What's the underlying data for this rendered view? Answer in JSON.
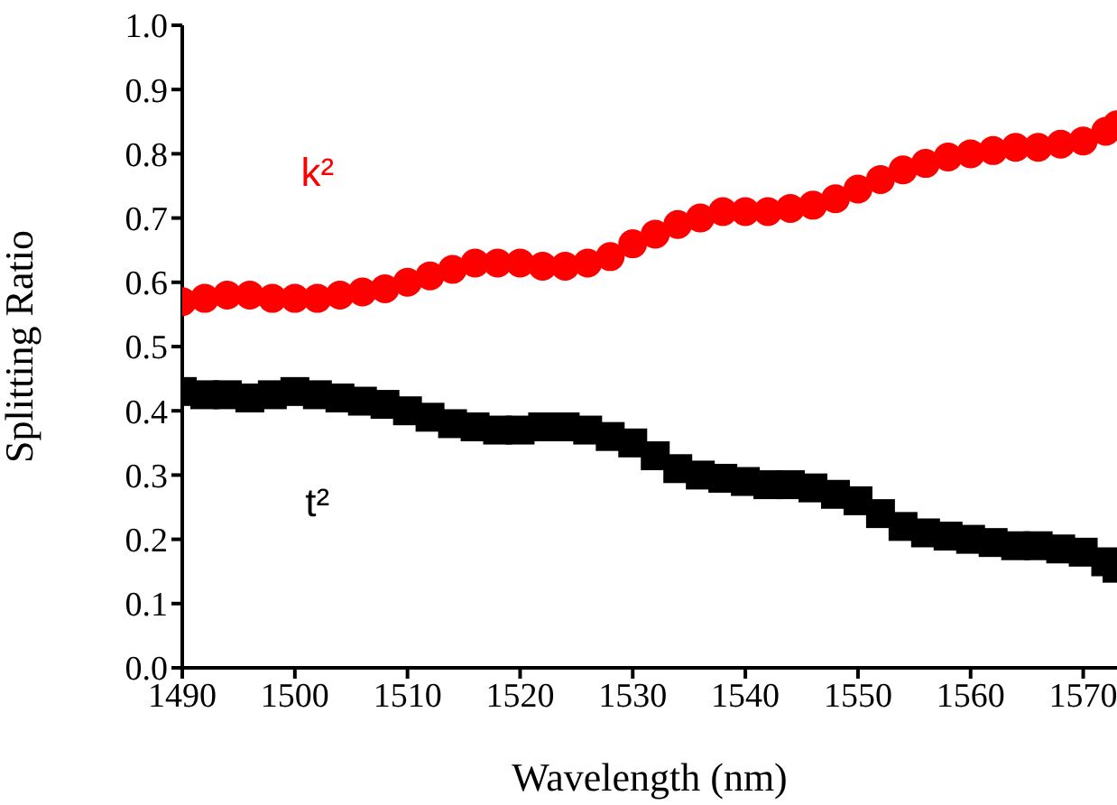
{
  "chart_data": {
    "type": "scatter",
    "xlabel": "Wavelength (nm)",
    "ylabel": "Splitting Ratio",
    "xlim": [
      1490,
      1573
    ],
    "xticks": [
      1490,
      1500,
      1510,
      1520,
      1530,
      1540,
      1550,
      1560,
      1570
    ],
    "ylim": [
      0,
      1
    ],
    "yticks": [
      {
        "value": 0,
        "label": "0.0"
      },
      {
        "value": 0.1,
        "label": "0.1"
      },
      {
        "value": 0.2,
        "label": "0.2"
      },
      {
        "value": 0.3,
        "label": "0.3"
      },
      {
        "value": 0.4,
        "label": "0.4"
      },
      {
        "value": 0.5,
        "label": "0.5"
      },
      {
        "value": 0.6,
        "label": "0.6"
      },
      {
        "value": 0.7,
        "label": "0.7"
      },
      {
        "value": 0.8,
        "label": "0.8"
      },
      {
        "value": 0.9,
        "label": "0.9"
      },
      {
        "value": 1,
        "label": "1.0"
      }
    ],
    "grid": false,
    "legend": false,
    "x": [
      1490,
      1492,
      1494,
      1496,
      1498,
      1500,
      1502,
      1504,
      1506,
      1508,
      1510,
      1512,
      1514,
      1516,
      1518,
      1520,
      1522,
      1524,
      1526,
      1528,
      1530,
      1532,
      1534,
      1536,
      1538,
      1540,
      1542,
      1544,
      1546,
      1548,
      1550,
      1552,
      1554,
      1556,
      1558,
      1560,
      1562,
      1564,
      1566,
      1568,
      1570,
      1572,
      1573
    ],
    "series": [
      {
        "name": "k²",
        "color": "#ff0000",
        "marker": "circle",
        "values": [
          0.57,
          0.575,
          0.58,
          0.58,
          0.575,
          0.575,
          0.575,
          0.58,
          0.585,
          0.59,
          0.6,
          0.61,
          0.62,
          0.63,
          0.63,
          0.63,
          0.625,
          0.625,
          0.63,
          0.64,
          0.66,
          0.675,
          0.69,
          0.7,
          0.71,
          0.71,
          0.71,
          0.715,
          0.72,
          0.73,
          0.745,
          0.76,
          0.775,
          0.785,
          0.795,
          0.8,
          0.805,
          0.81,
          0.81,
          0.815,
          0.82,
          0.835,
          0.845
        ]
      },
      {
        "name": "t²",
        "color": "#000000",
        "marker": "square",
        "values": [
          0.43,
          0.425,
          0.425,
          0.42,
          0.425,
          0.43,
          0.425,
          0.42,
          0.415,
          0.41,
          0.4,
          0.39,
          0.38,
          0.375,
          0.37,
          0.37,
          0.375,
          0.375,
          0.37,
          0.36,
          0.35,
          0.33,
          0.31,
          0.3,
          0.295,
          0.29,
          0.285,
          0.285,
          0.28,
          0.27,
          0.26,
          0.24,
          0.22,
          0.21,
          0.205,
          0.2,
          0.195,
          0.19,
          0.19,
          0.185,
          0.18,
          0.165,
          0.155
        ]
      }
    ]
  }
}
